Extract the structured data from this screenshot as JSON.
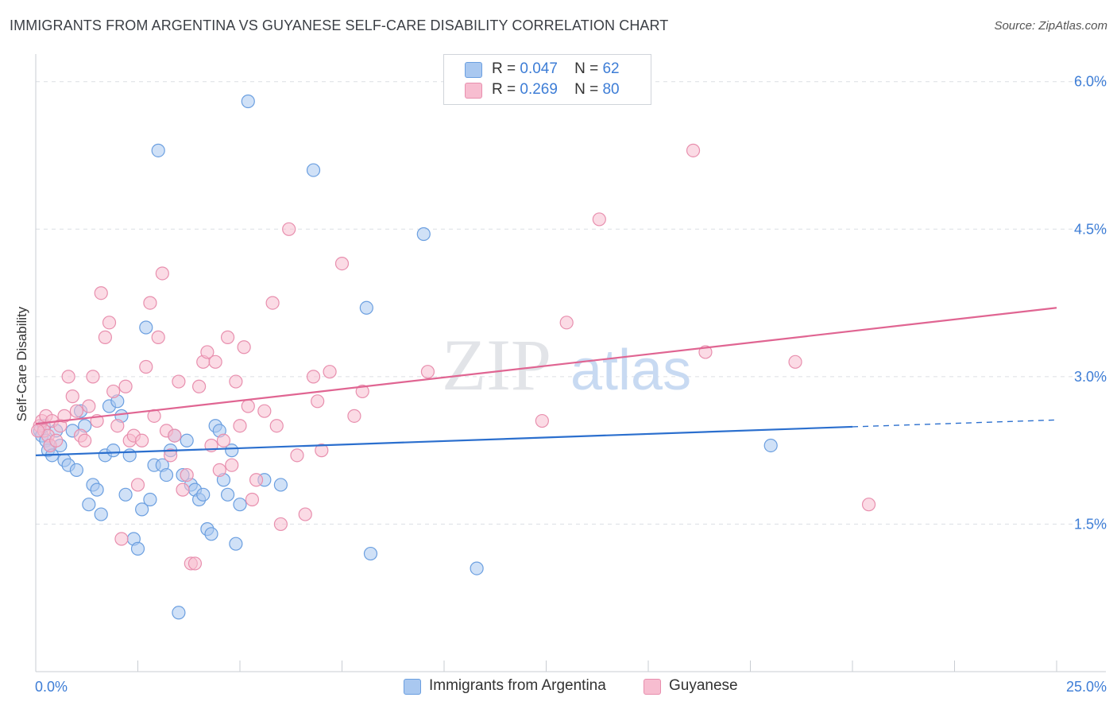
{
  "header": {
    "title": "IMMIGRANTS FROM ARGENTINA VS GUYANESE SELF-CARE DISABILITY CORRELATION CHART",
    "source": "Source: ZipAtlas.com"
  },
  "legend": {
    "series": [
      {
        "r_label": "R =",
        "r_value": "0.047",
        "n_label": "N =",
        "n_value": "62"
      },
      {
        "r_label": "R =",
        "r_value": "0.269",
        "n_label": "N =",
        "n_value": "80"
      }
    ]
  },
  "watermark": {
    "zip": "ZIP",
    "atlas": "atlas"
  },
  "colors": {
    "blue_fill": "#a9c8f0",
    "blue_stroke": "#6b9fe0",
    "blue_line": "#2b6fce",
    "pink_fill": "#f7bdd0",
    "pink_stroke": "#e88fae",
    "pink_line": "#e06592",
    "axis_label": "#3d7dd6",
    "grid": "#dcdfe4"
  },
  "chart_data": {
    "type": "scatter",
    "title": "IMMIGRANTS FROM ARGENTINA VS GUYANESE SELF-CARE DISABILITY CORRELATION CHART",
    "xlabel": "",
    "ylabel": "Self-Care Disability",
    "xlim": [
      0,
      25
    ],
    "ylim": [
      0,
      6.2
    ],
    "x_tick_labels": [
      "0.0%",
      "25.0%"
    ],
    "y_ticks": [
      1.5,
      3.0,
      4.5,
      6.0
    ],
    "y_tick_labels": [
      "1.5%",
      "3.0%",
      "4.5%",
      "6.0%"
    ],
    "grid": true,
    "legend_position": "bottom",
    "series": [
      {
        "name": "Immigrants from Argentina",
        "color": "#6b9fe0",
        "trend": {
          "x": [
            0,
            20
          ],
          "y": [
            2.2,
            2.49
          ],
          "dashed_to": [
            25,
            2.56
          ]
        },
        "points": [
          [
            0.1,
            2.45
          ],
          [
            0.15,
            2.4
          ],
          [
            0.2,
            2.5
          ],
          [
            0.25,
            2.35
          ],
          [
            0.3,
            2.25
          ],
          [
            0.35,
            2.3
          ],
          [
            0.4,
            2.2
          ],
          [
            0.5,
            2.45
          ],
          [
            0.6,
            2.3
          ],
          [
            0.7,
            2.15
          ],
          [
            0.8,
            2.1
          ],
          [
            0.9,
            2.45
          ],
          [
            1.0,
            2.05
          ],
          [
            1.1,
            2.65
          ],
          [
            1.2,
            2.5
          ],
          [
            1.3,
            1.7
          ],
          [
            1.4,
            1.9
          ],
          [
            1.5,
            1.85
          ],
          [
            1.6,
            1.6
          ],
          [
            1.7,
            2.2
          ],
          [
            1.8,
            2.7
          ],
          [
            1.9,
            2.25
          ],
          [
            2.0,
            2.75
          ],
          [
            2.1,
            2.6
          ],
          [
            2.2,
            1.8
          ],
          [
            2.3,
            2.2
          ],
          [
            2.4,
            1.35
          ],
          [
            2.5,
            1.25
          ],
          [
            2.6,
            1.65
          ],
          [
            2.7,
            3.5
          ],
          [
            2.8,
            1.75
          ],
          [
            2.9,
            2.1
          ],
          [
            3.0,
            5.3
          ],
          [
            3.1,
            2.1
          ],
          [
            3.2,
            2.0
          ],
          [
            3.3,
            2.25
          ],
          [
            3.4,
            2.4
          ],
          [
            3.5,
            0.6
          ],
          [
            3.6,
            2.0
          ],
          [
            3.7,
            2.35
          ],
          [
            3.8,
            1.9
          ],
          [
            3.9,
            1.85
          ],
          [
            4.0,
            1.75
          ],
          [
            4.1,
            1.8
          ],
          [
            4.2,
            1.45
          ],
          [
            4.3,
            1.4
          ],
          [
            4.4,
            2.5
          ],
          [
            4.5,
            2.45
          ],
          [
            4.6,
            1.95
          ],
          [
            4.7,
            1.8
          ],
          [
            4.8,
            2.25
          ],
          [
            4.9,
            1.3
          ],
          [
            5.0,
            1.7
          ],
          [
            5.2,
            5.8
          ],
          [
            5.6,
            1.95
          ],
          [
            6.0,
            1.9
          ],
          [
            6.8,
            5.1
          ],
          [
            8.1,
            3.7
          ],
          [
            8.2,
            1.2
          ],
          [
            9.5,
            4.45
          ],
          [
            10.8,
            1.05
          ],
          [
            18.0,
            2.3
          ]
        ]
      },
      {
        "name": "Guyanese",
        "color": "#e88fae",
        "trend": {
          "x": [
            0,
            25
          ],
          "y": [
            2.52,
            3.7
          ]
        },
        "points": [
          [
            0.1,
            2.5
          ],
          [
            0.15,
            2.55
          ],
          [
            0.2,
            2.45
          ],
          [
            0.25,
            2.6
          ],
          [
            0.3,
            2.4
          ],
          [
            0.35,
            2.3
          ],
          [
            0.4,
            2.55
          ],
          [
            0.5,
            2.35
          ],
          [
            0.6,
            2.5
          ],
          [
            0.7,
            2.6
          ],
          [
            0.8,
            3.0
          ],
          [
            0.9,
            2.8
          ],
          [
            1.0,
            2.65
          ],
          [
            1.1,
            2.4
          ],
          [
            1.2,
            2.35
          ],
          [
            1.3,
            2.7
          ],
          [
            1.4,
            3.0
          ],
          [
            1.5,
            2.55
          ],
          [
            1.6,
            3.85
          ],
          [
            1.7,
            3.4
          ],
          [
            1.8,
            3.55
          ],
          [
            1.9,
            2.85
          ],
          [
            2.0,
            2.5
          ],
          [
            2.1,
            1.35
          ],
          [
            2.2,
            2.9
          ],
          [
            2.3,
            2.35
          ],
          [
            2.4,
            2.4
          ],
          [
            2.5,
            1.9
          ],
          [
            2.6,
            2.35
          ],
          [
            2.7,
            3.1
          ],
          [
            2.8,
            3.75
          ],
          [
            2.9,
            2.6
          ],
          [
            3.0,
            3.4
          ],
          [
            3.1,
            4.05
          ],
          [
            3.2,
            2.45
          ],
          [
            3.3,
            2.2
          ],
          [
            3.4,
            2.4
          ],
          [
            3.5,
            2.95
          ],
          [
            3.6,
            1.85
          ],
          [
            3.7,
            2.0
          ],
          [
            3.8,
            1.1
          ],
          [
            3.9,
            1.1
          ],
          [
            4.0,
            2.9
          ],
          [
            4.1,
            3.15
          ],
          [
            4.2,
            3.25
          ],
          [
            4.3,
            2.3
          ],
          [
            4.4,
            3.15
          ],
          [
            4.5,
            2.05
          ],
          [
            4.6,
            2.35
          ],
          [
            4.7,
            3.4
          ],
          [
            4.8,
            2.1
          ],
          [
            4.9,
            2.95
          ],
          [
            5.0,
            2.5
          ],
          [
            5.1,
            3.3
          ],
          [
            5.2,
            2.7
          ],
          [
            5.3,
            1.75
          ],
          [
            5.4,
            1.95
          ],
          [
            5.6,
            2.65
          ],
          [
            5.8,
            3.75
          ],
          [
            5.9,
            2.5
          ],
          [
            6.0,
            1.5
          ],
          [
            6.2,
            4.5
          ],
          [
            6.4,
            2.2
          ],
          [
            6.6,
            1.6
          ],
          [
            6.8,
            3.0
          ],
          [
            6.9,
            2.75
          ],
          [
            7.0,
            2.25
          ],
          [
            7.2,
            3.05
          ],
          [
            7.5,
            4.15
          ],
          [
            7.8,
            2.6
          ],
          [
            8.0,
            2.85
          ],
          [
            9.6,
            3.05
          ],
          [
            12.4,
            2.55
          ],
          [
            13.0,
            3.55
          ],
          [
            13.8,
            4.6
          ],
          [
            16.1,
            5.3
          ],
          [
            16.4,
            3.25
          ],
          [
            18.6,
            3.15
          ],
          [
            20.4,
            1.7
          ],
          [
            0.05,
            2.45
          ]
        ]
      }
    ]
  },
  "bottom_legend": [
    {
      "label": "Immigrants from Argentina"
    },
    {
      "label": "Guyanese"
    }
  ]
}
